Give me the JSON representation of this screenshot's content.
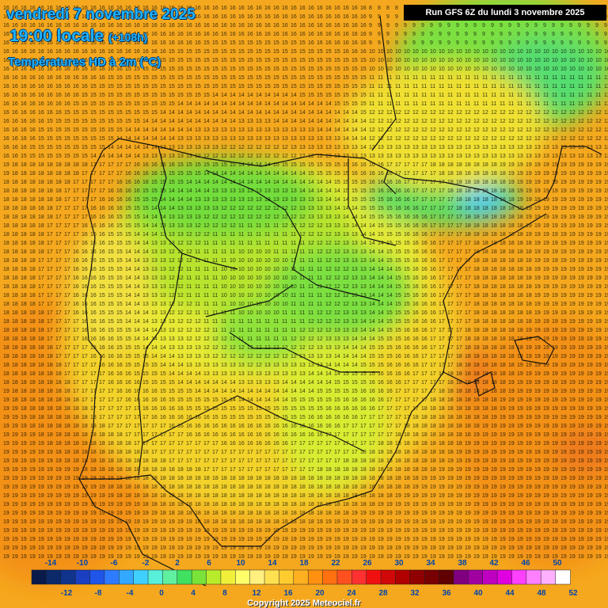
{
  "header": {
    "date_line": "vendredi 7 novembre 2025",
    "time_line": "19:00 locale",
    "lead": "(+108h)",
    "field": "Températures HD à 2m (°C)"
  },
  "run_label": "Run GFS 6Z du lundi 3 novembre 2025",
  "copyright": "Copyright 2025 Meteociel.fr",
  "legend": {
    "top_labels": [
      "-14",
      "-10",
      "-6",
      "-2",
      "2",
      "6",
      "10",
      "14",
      "18",
      "22",
      "26",
      "30",
      "34",
      "38",
      "42",
      "46",
      "50"
    ],
    "bottom_labels": [
      "-12",
      "-8",
      "-4",
      "0",
      "4",
      "8",
      "12",
      "16",
      "20",
      "24",
      "28",
      "32",
      "36",
      "40",
      "44",
      "48",
      "52"
    ],
    "colors": [
      "#0a1a4a",
      "#0c2a6a",
      "#10338c",
      "#1a3fc0",
      "#1f55e8",
      "#2f7bff",
      "#33a8ff",
      "#40d0ff",
      "#58f0d8",
      "#60f0a0",
      "#40e060",
      "#7ae33a",
      "#b8ec2a",
      "#f0f03a",
      "#ffff6a",
      "#fff080",
      "#ffe050",
      "#ffcc30",
      "#ffb020",
      "#ff9010",
      "#ff7010",
      "#ff5020",
      "#ff3030",
      "#f01010",
      "#d00808",
      "#b00000",
      "#900000",
      "#780000",
      "#600000",
      "#800080",
      "#a000a0",
      "#c000c0",
      "#e000e0",
      "#ff40ff",
      "#ff80ff",
      "#ffb0ff",
      "#ffffff"
    ]
  }
}
